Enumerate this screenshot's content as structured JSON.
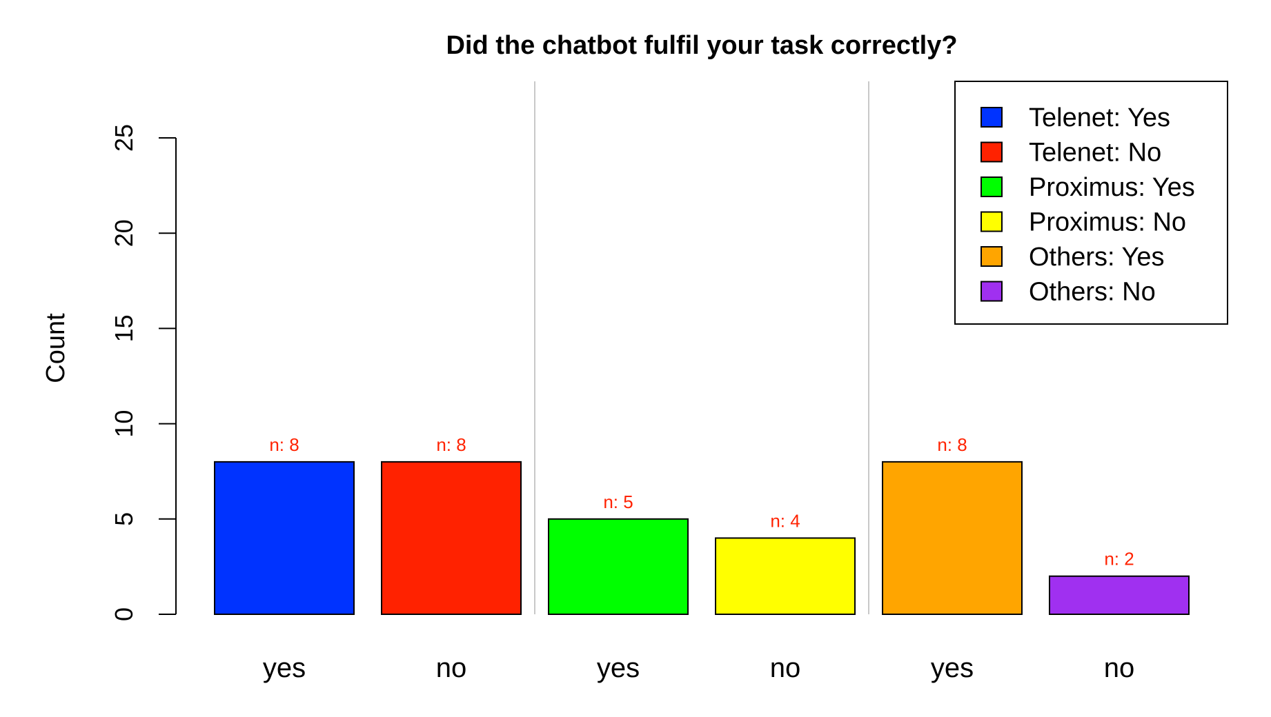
{
  "chart_data": {
    "type": "bar",
    "title": "Did the chatbot fulfil your task correctly?",
    "xlabel": "",
    "ylabel": "Count",
    "ylim": [
      0,
      25
    ],
    "yticks": [
      0,
      5,
      10,
      15,
      20,
      25
    ],
    "grid": false,
    "legend_position": "top-right",
    "categories": [
      "yes",
      "no",
      "yes",
      "no",
      "yes",
      "no"
    ],
    "values": [
      8,
      8,
      5,
      4,
      8,
      2
    ],
    "bar_labels": [
      "n: 8",
      "n: 8",
      "n: 5",
      "n: 4",
      "n: 8",
      "n: 2"
    ],
    "bar_label_color": "#ff2200",
    "colors": [
      "#0033ff",
      "#ff2200",
      "#00ff00",
      "#ffff00",
      "#ffa500",
      "#a030f0"
    ],
    "separator_color": "#c8c8c8",
    "legend": [
      {
        "label": "Telenet: Yes",
        "color": "#0033ff"
      },
      {
        "label": "Telenet: No",
        "color": "#ff2200"
      },
      {
        "label": "Proximus: Yes",
        "color": "#00ff00"
      },
      {
        "label": "Proximus: No",
        "color": "#ffff00"
      },
      {
        "label": "Others: Yes",
        "color": "#ffa500"
      },
      {
        "label": "Others: No",
        "color": "#a030f0"
      }
    ]
  }
}
